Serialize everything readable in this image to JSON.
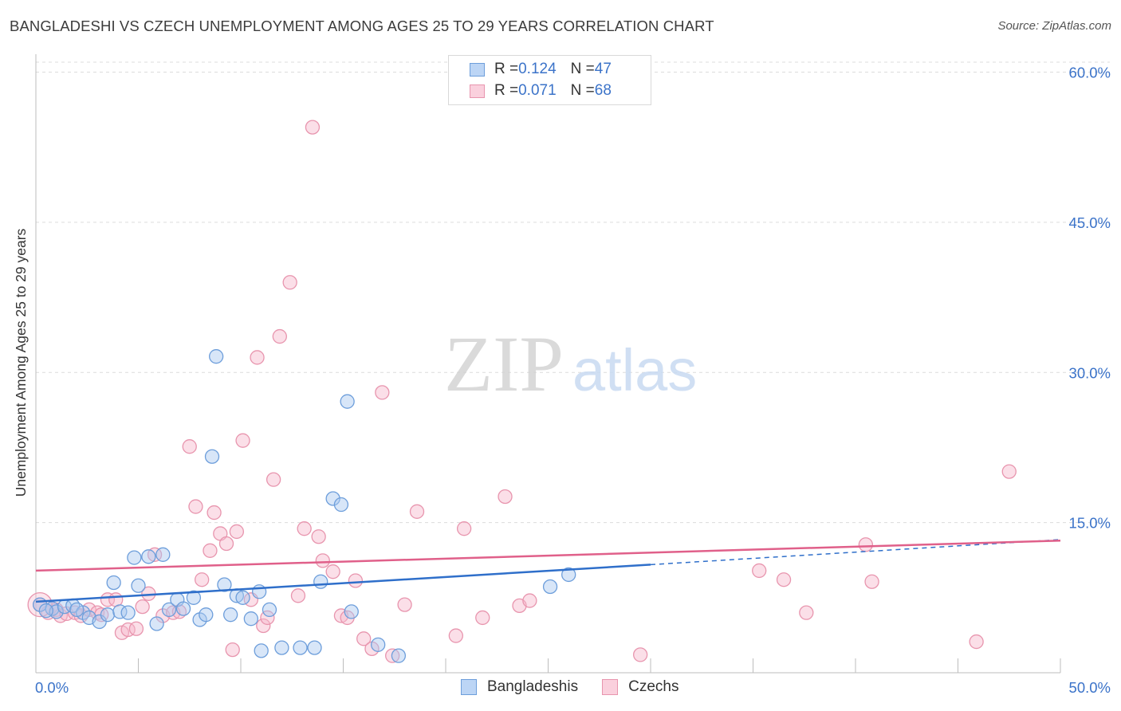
{
  "title": "BANGLADESHI VS CZECH UNEMPLOYMENT AMONG AGES 25 TO 29 YEARS CORRELATION CHART",
  "source": "Source: ZipAtlas.com",
  "watermark": {
    "zip": "ZIP",
    "atlas": "atlas"
  },
  "legend_top": {
    "rows": [
      {
        "r_label": "R = ",
        "r_value": "0.124",
        "n_label": "N = ",
        "n_value": "47"
      },
      {
        "r_label": "R = ",
        "r_value": "0.071",
        "n_label": "N = ",
        "n_value": "68"
      }
    ]
  },
  "colors": {
    "bangladeshis_fill": "#a8c8f0",
    "bangladeshis_stroke": "#6d9edb",
    "bangladeshis_line": "#2f6fca",
    "czechs_fill": "#f7b8cb",
    "czechs_stroke": "#e895ae",
    "czechs_line": "#e0608a",
    "tick_label": "#3b73c9",
    "grid": "#dcdcdc"
  },
  "chart_data": {
    "type": "scatter",
    "title": "BANGLADESHI VS CZECH UNEMPLOYMENT AMONG AGES 25 TO 29 YEARS CORRELATION CHART",
    "xlabel": "",
    "ylabel": "Unemployment Among Ages 25 to 29 years",
    "xlim": [
      0,
      50
    ],
    "ylim": [
      0,
      61
    ],
    "x_tick_labels": [
      "0.0%",
      "50.0%"
    ],
    "y_ticks": [
      15,
      30,
      45,
      60
    ],
    "y_tick_labels": [
      "15.0%",
      "30.0%",
      "45.0%",
      "60.0%"
    ],
    "grid": true,
    "legend_position": "bottom",
    "series": [
      {
        "name": "Bangladeshis",
        "R": 0.124,
        "N": 47,
        "trend": {
          "x": [
            0,
            30
          ],
          "y": [
            7.1,
            10.8
          ],
          "dashed_to": [
            50,
            13.3
          ]
        },
        "points": [
          [
            0.2,
            6.8
          ],
          [
            0.8,
            6.4
          ],
          [
            1.0,
            6.1
          ],
          [
            1.4,
            6.6
          ],
          [
            1.8,
            6.7
          ],
          [
            2.3,
            6.0
          ],
          [
            2.6,
            5.5
          ],
          [
            3.1,
            5.1
          ],
          [
            3.5,
            5.8
          ],
          [
            3.8,
            9.0
          ],
          [
            4.1,
            6.1
          ],
          [
            4.5,
            6.0
          ],
          [
            4.8,
            11.5
          ],
          [
            5.0,
            8.7
          ],
          [
            5.5,
            11.6
          ],
          [
            5.9,
            4.9
          ],
          [
            6.2,
            11.8
          ],
          [
            6.5,
            6.3
          ],
          [
            6.9,
            7.3
          ],
          [
            7.2,
            6.4
          ],
          [
            7.7,
            7.5
          ],
          [
            8.0,
            5.3
          ],
          [
            8.3,
            5.8
          ],
          [
            8.6,
            21.6
          ],
          [
            8.8,
            31.6
          ],
          [
            9.2,
            8.8
          ],
          [
            9.5,
            5.8
          ],
          [
            9.8,
            7.7
          ],
          [
            10.1,
            7.5
          ],
          [
            10.5,
            5.4
          ],
          [
            10.9,
            8.1
          ],
          [
            11.0,
            2.2
          ],
          [
            11.4,
            6.3
          ],
          [
            12.0,
            2.5
          ],
          [
            12.9,
            2.5
          ],
          [
            13.6,
            2.5
          ],
          [
            13.9,
            9.1
          ],
          [
            14.5,
            17.4
          ],
          [
            14.9,
            16.8
          ],
          [
            15.2,
            27.1
          ],
          [
            15.4,
            6.1
          ],
          [
            16.7,
            2.8
          ],
          [
            17.7,
            1.7
          ],
          [
            25.1,
            8.6
          ],
          [
            26.0,
            9.8
          ],
          [
            0.5,
            6.2
          ],
          [
            2.0,
            6.3
          ]
        ]
      },
      {
        "name": "Czechs",
        "R": 0.071,
        "N": 68,
        "trend": {
          "x": [
            0,
            50
          ],
          "y": [
            10.2,
            13.2
          ]
        },
        "points": [
          [
            0.2,
            6.8
          ],
          [
            0.6,
            6.0
          ],
          [
            1.0,
            6.3
          ],
          [
            1.2,
            5.7
          ],
          [
            1.5,
            5.9
          ],
          [
            1.9,
            6.0
          ],
          [
            2.2,
            5.7
          ],
          [
            2.6,
            6.3
          ],
          [
            3.0,
            6.0
          ],
          [
            3.2,
            5.8
          ],
          [
            3.5,
            7.3
          ],
          [
            3.9,
            7.3
          ],
          [
            4.2,
            4.0
          ],
          [
            4.5,
            4.3
          ],
          [
            4.9,
            4.4
          ],
          [
            5.2,
            6.6
          ],
          [
            5.5,
            7.9
          ],
          [
            5.8,
            11.8
          ],
          [
            6.2,
            5.7
          ],
          [
            6.7,
            6.0
          ],
          [
            7.0,
            6.1
          ],
          [
            7.5,
            22.6
          ],
          [
            7.8,
            16.6
          ],
          [
            8.1,
            9.3
          ],
          [
            8.5,
            12.2
          ],
          [
            8.7,
            16.0
          ],
          [
            9.0,
            13.9
          ],
          [
            9.3,
            12.9
          ],
          [
            9.6,
            2.3
          ],
          [
            9.8,
            14.1
          ],
          [
            10.1,
            23.2
          ],
          [
            10.5,
            7.3
          ],
          [
            10.8,
            31.5
          ],
          [
            11.1,
            4.7
          ],
          [
            11.3,
            5.5
          ],
          [
            11.6,
            19.3
          ],
          [
            11.9,
            33.6
          ],
          [
            12.4,
            39.0
          ],
          [
            12.8,
            7.7
          ],
          [
            13.1,
            14.4
          ],
          [
            13.5,
            54.5
          ],
          [
            13.8,
            13.6
          ],
          [
            14.0,
            11.2
          ],
          [
            14.5,
            10.1
          ],
          [
            14.9,
            5.7
          ],
          [
            15.2,
            5.5
          ],
          [
            15.6,
            9.2
          ],
          [
            16.0,
            3.4
          ],
          [
            16.4,
            2.4
          ],
          [
            16.9,
            28.0
          ],
          [
            17.4,
            1.7
          ],
          [
            18.0,
            6.8
          ],
          [
            18.6,
            16.1
          ],
          [
            20.5,
            3.7
          ],
          [
            20.9,
            14.4
          ],
          [
            21.8,
            5.5
          ],
          [
            22.9,
            17.6
          ],
          [
            23.6,
            6.7
          ],
          [
            24.1,
            7.2
          ],
          [
            29.5,
            1.8
          ],
          [
            35.3,
            10.2
          ],
          [
            36.5,
            9.3
          ],
          [
            37.6,
            6.0
          ],
          [
            40.5,
            12.8
          ],
          [
            40.8,
            9.1
          ],
          [
            45.9,
            3.1
          ],
          [
            47.5,
            20.1
          ],
          [
            0.8,
            6.4
          ]
        ]
      }
    ]
  },
  "legend_bottom": [
    {
      "label": "Bangladeshis"
    },
    {
      "label": "Czechs"
    }
  ]
}
